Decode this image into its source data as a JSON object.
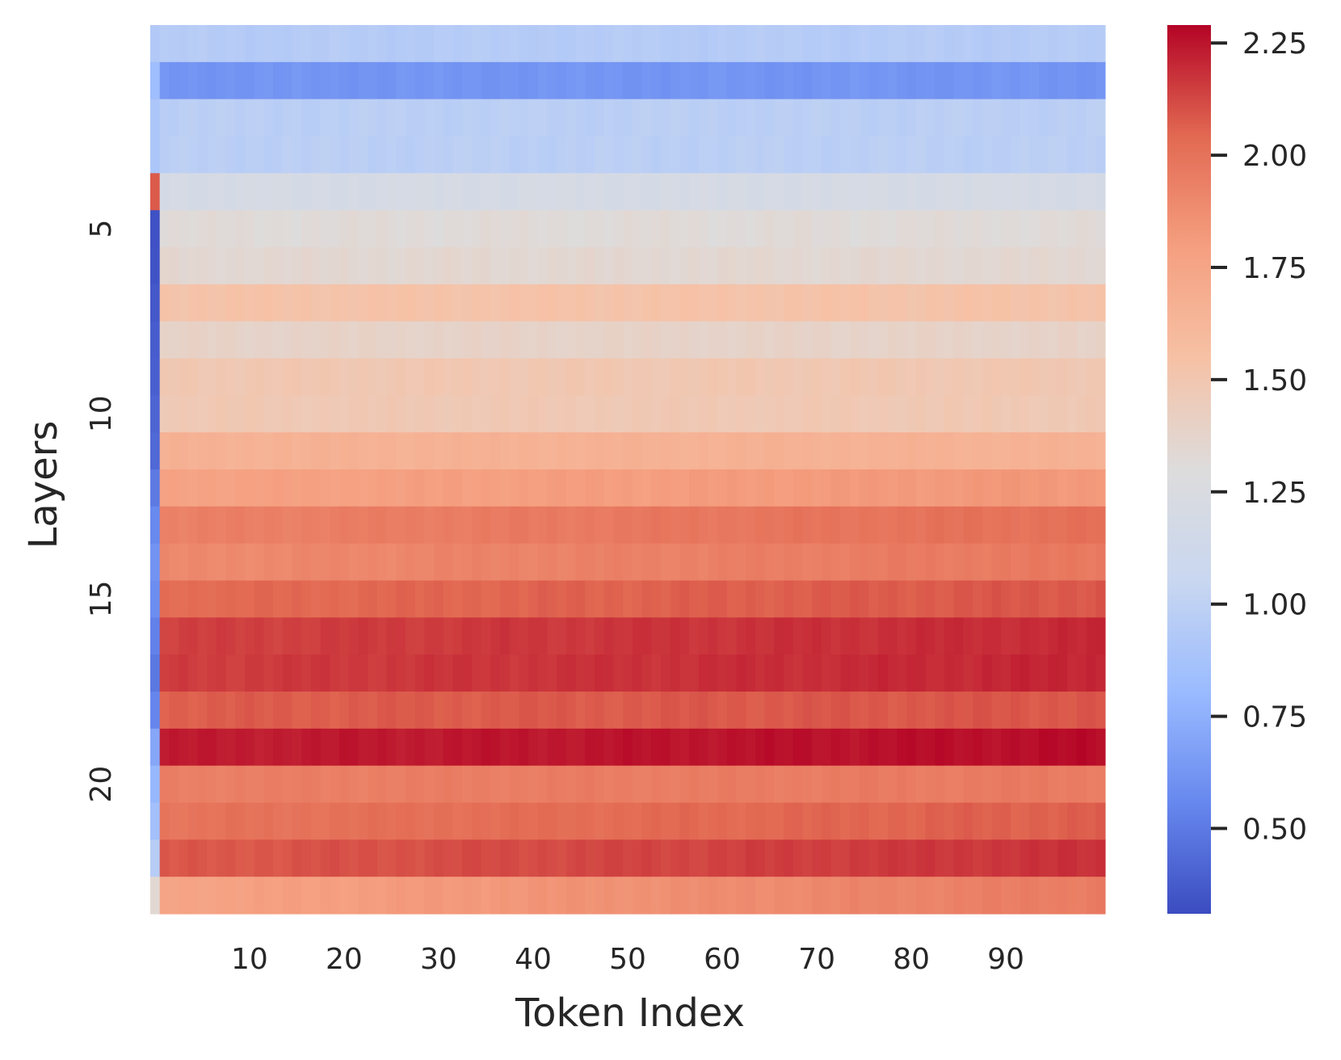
{
  "chart_data": {
    "type": "heatmap",
    "title": "",
    "xlabel": "Token Index",
    "ylabel": "Layers",
    "n_rows": 24,
    "n_cols": 101,
    "x_ticks": [
      10,
      20,
      30,
      40,
      50,
      60,
      70,
      80,
      90
    ],
    "y_ticks": [
      5,
      10,
      15,
      20
    ],
    "colormap": "coolwarm",
    "colormap_stops": [
      "#3b4cc0",
      "#6788ee",
      "#9abbff",
      "#c9d7f0",
      "#dddcdc",
      "#f6c1a5",
      "#f59f80",
      "#e26952",
      "#b40426"
    ],
    "colorbar": {
      "vmin": 0.31,
      "vmax": 2.29,
      "ticks": [
        0.5,
        0.75,
        1.0,
        1.25,
        1.5,
        1.75,
        2.0,
        2.25
      ],
      "tick_labels": [
        "0.50",
        "0.75",
        "1.00",
        "1.25",
        "1.50",
        "1.75",
        "2.00",
        "2.25"
      ]
    },
    "first_column_values": [
      0.93,
      0.83,
      0.9,
      0.9,
      2.08,
      0.33,
      0.34,
      0.36,
      0.38,
      0.39,
      0.41,
      0.43,
      0.5,
      0.56,
      0.61,
      0.58,
      0.53,
      0.49,
      0.55,
      0.71,
      0.79,
      0.85,
      0.96,
      1.34
    ],
    "row_means": [
      0.95,
      0.62,
      0.98,
      0.98,
      1.2,
      1.32,
      1.35,
      1.53,
      1.39,
      1.49,
      1.48,
      1.66,
      1.8,
      1.97,
      1.93,
      2.06,
      2.17,
      2.18,
      2.08,
      2.25,
      1.95,
      2.03,
      2.13,
      1.86
    ],
    "row_trend": [
      0.0,
      0.0,
      0.0,
      0.0,
      0.0,
      0.0,
      0.0,
      0.0,
      0.0,
      0.0,
      0.0,
      0.0,
      0.06,
      0.08,
      0.08,
      0.06,
      0.06,
      0.06,
      0.02,
      0.04,
      0.02,
      0.08,
      0.1,
      0.2
    ]
  }
}
